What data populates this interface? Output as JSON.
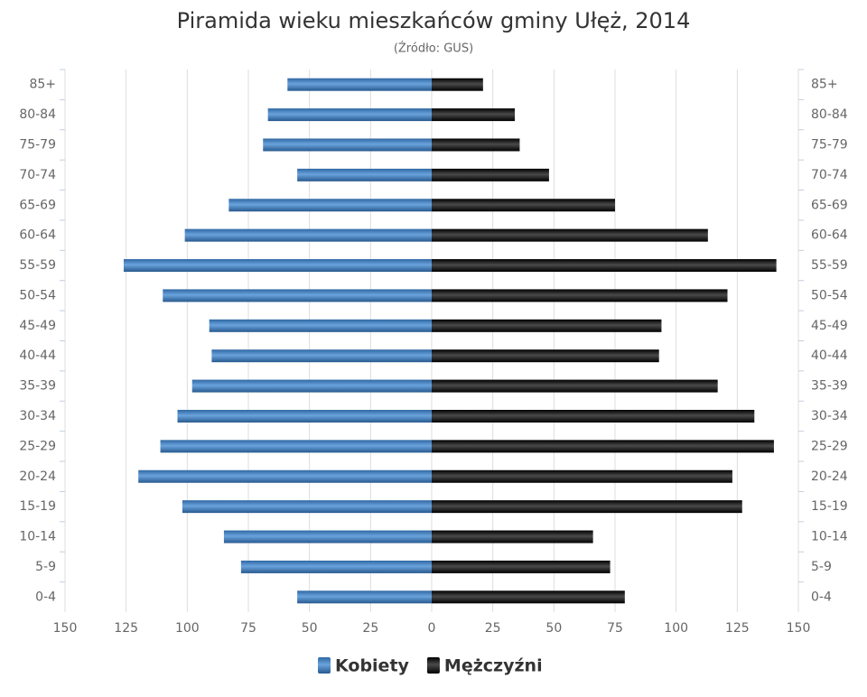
{
  "chart_data": {
    "type": "bar",
    "orientation": "horizontal-pyramid",
    "title": "Piramida wieku mieszkańców gminy Ułęż, 2014",
    "subtitle": "(Źródło: GUS)",
    "categories": [
      "85+",
      "80-84",
      "75-79",
      "70-74",
      "65-69",
      "60-64",
      "55-59",
      "50-54",
      "45-49",
      "40-44",
      "35-39",
      "30-34",
      "25-29",
      "20-24",
      "15-19",
      "10-14",
      "5-9",
      "0-4"
    ],
    "series": [
      {
        "name": "Kobiety",
        "color": "#3b78b5",
        "side": "left",
        "values": [
          59,
          67,
          69,
          55,
          83,
          101,
          126,
          110,
          91,
          90,
          98,
          104,
          111,
          120,
          102,
          85,
          78,
          55
        ]
      },
      {
        "name": "Mężczyźni",
        "color": "#1a1a1a",
        "side": "right",
        "values": [
          21,
          34,
          36,
          48,
          75,
          113,
          141,
          121,
          94,
          93,
          117,
          132,
          140,
          123,
          127,
          66,
          73,
          79
        ]
      }
    ],
    "xlim": [
      0,
      150
    ],
    "xticks": [
      0,
      25,
      50,
      75,
      100,
      125,
      150
    ],
    "grid": true
  }
}
